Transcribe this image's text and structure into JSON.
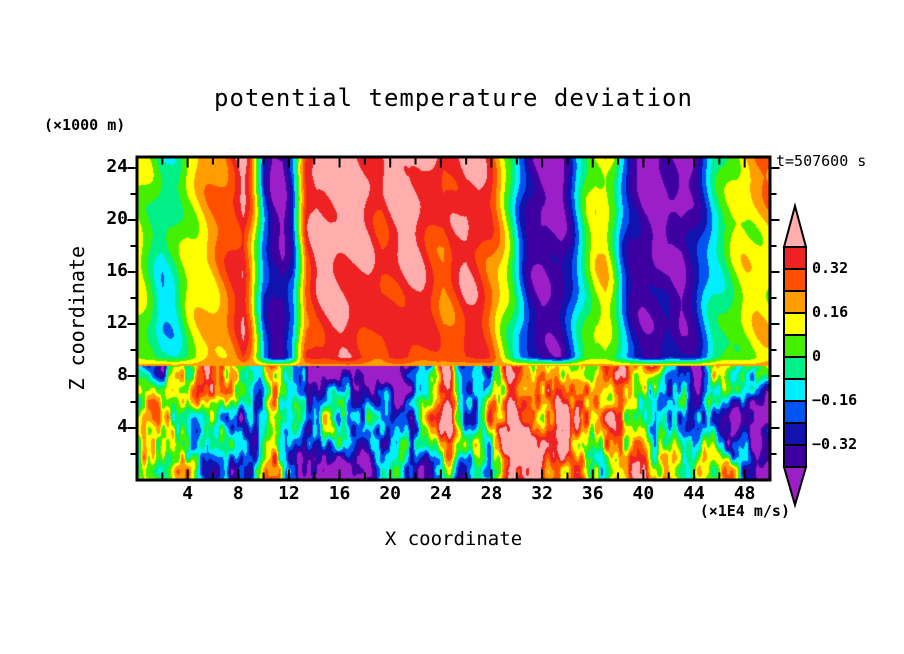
{
  "header": {
    "time_label": "t=507600 s"
  },
  "axes": {
    "x": {
      "axis_label": "X coordinate",
      "unit_label": "(×1E4 m/s)",
      "tick_values": [
        4,
        8,
        12,
        16,
        20,
        24,
        28,
        32,
        36,
        40,
        44,
        48
      ],
      "tick_labels": [
        "4",
        "8",
        "12",
        "16",
        "20",
        "24",
        "28",
        "32",
        "36",
        "40",
        "44",
        "48"
      ],
      "range": [
        0,
        50
      ]
    },
    "y": {
      "axis_label": "Z coordinate",
      "unit_label": "(×1000 m)",
      "tick_values": [
        4,
        8,
        12,
        16,
        20,
        24
      ],
      "tick_labels": [
        "4",
        "8",
        "12",
        "16",
        "20",
        "24"
      ],
      "range": [
        0,
        24.85
      ]
    }
  },
  "colorbar": {
    "tick_values": [
      0.32,
      0.16,
      0,
      -0.16,
      -0.32
    ],
    "tick_labels": [
      "0.32",
      "0.16",
      "0",
      "−0.16",
      "−0.32"
    ]
  },
  "chart_data": {
    "type": "heatmap",
    "title": "potential temperature deviation",
    "xlabel": "X coordinate",
    "ylabel": "Z coordinate",
    "x_units": "(×1E4 m/s)",
    "z_units": "(×1000 m)",
    "time": "t=507600 s",
    "x_range": [
      0,
      50
    ],
    "z_range": [
      0,
      24.85
    ],
    "contour_levels": [
      -0.4,
      -0.32,
      -0.24,
      -0.16,
      -0.08,
      0,
      0.08,
      0.16,
      0.24,
      0.32,
      0.4
    ],
    "palette": [
      "#9c1ec8",
      "#3f00a2",
      "#1212ae",
      "#0055f0",
      "#00eeff",
      "#00f087",
      "#44f000",
      "#ffff00",
      "#ff9d00",
      "#ff5000",
      "#ee2222",
      "#ffadad"
    ],
    "interface_z": 8.8,
    "upper_profile": {
      "x": [
        0,
        1,
        2,
        3,
        4,
        5,
        6,
        7,
        7.8,
        8.4,
        9,
        9.5,
        10,
        10.7,
        11.5,
        12.3,
        12.8,
        13.4,
        14.2,
        15.5,
        17,
        18.3,
        19.3,
        20.3,
        21.5,
        22.5,
        23.3,
        24.2,
        25,
        26,
        27,
        28,
        28.8,
        29.5,
        30.2,
        31,
        32,
        33.5,
        34.3,
        34.9,
        35.5,
        36.2,
        37,
        37.7,
        38.3,
        39,
        40,
        41,
        42,
        43,
        44,
        44.8,
        45.5,
        46.2,
        47,
        48,
        49,
        50
      ],
      "v": [
        0.13,
        0.04,
        -0.07,
        -0.02,
        0.1,
        0.15,
        0.21,
        0.28,
        0.36,
        0.43,
        0.25,
        0.02,
        -0.22,
        -0.38,
        -0.43,
        -0.25,
        0.05,
        0.34,
        0.44,
        0.47,
        0.46,
        0.42,
        0.36,
        0.42,
        0.46,
        0.42,
        0.36,
        0.3,
        0.36,
        0.43,
        0.4,
        0.3,
        0.16,
        0.02,
        -0.18,
        -0.36,
        -0.44,
        -0.42,
        -0.28,
        -0.12,
        0.02,
        0.12,
        0.15,
        0.02,
        -0.18,
        -0.34,
        -0.42,
        -0.45,
        -0.4,
        -0.45,
        -0.36,
        -0.22,
        -0.1,
        -0.03,
        0.05,
        0.11,
        0.14,
        0.15
      ]
    },
    "lower_bias": {
      "x": [
        0,
        2,
        4,
        6,
        8,
        10,
        11,
        12,
        13.5,
        15,
        17,
        19,
        21,
        23,
        24.5,
        25.5,
        26.5,
        28,
        29.5,
        31,
        33,
        34.5,
        36,
        37.5,
        39,
        40.5,
        42,
        43.5,
        45,
        46.5,
        47.5,
        49,
        50
      ],
      "v": [
        0.0,
        -0.05,
        0.02,
        0.05,
        -0.02,
        0.1,
        0.18,
        0.0,
        -0.22,
        -0.32,
        -0.35,
        -0.33,
        -0.35,
        -0.25,
        0.05,
        -0.15,
        -0.25,
        -0.05,
        0.15,
        0.1,
        -0.02,
        0.05,
        0.12,
        0.15,
        0.1,
        0.05,
        -0.05,
        -0.18,
        -0.05,
        0.02,
        -0.12,
        -0.1,
        -0.05
      ],
      "columns": [
        {
          "x": 10.8,
          "w": 0.45,
          "amp": 0.3
        },
        {
          "x": 24.6,
          "w": 0.5,
          "amp": 0.22
        },
        {
          "x": 29.8,
          "w": 0.7,
          "amp": 0.22
        },
        {
          "x": 33.0,
          "w": 0.5,
          "amp": 0.18
        },
        {
          "x": 37.6,
          "w": 0.8,
          "amp": 0.2
        },
        {
          "x": 45.3,
          "w": 0.5,
          "amp": 0.15
        }
      ]
    },
    "noise": {
      "seed": 7,
      "amplitude": 0.4,
      "octaves": [
        [
          0.3,
          0.2,
          0.5
        ],
        [
          0.85,
          0.5,
          0.3
        ],
        [
          2.6,
          0.95,
          0.2
        ]
      ]
    }
  }
}
